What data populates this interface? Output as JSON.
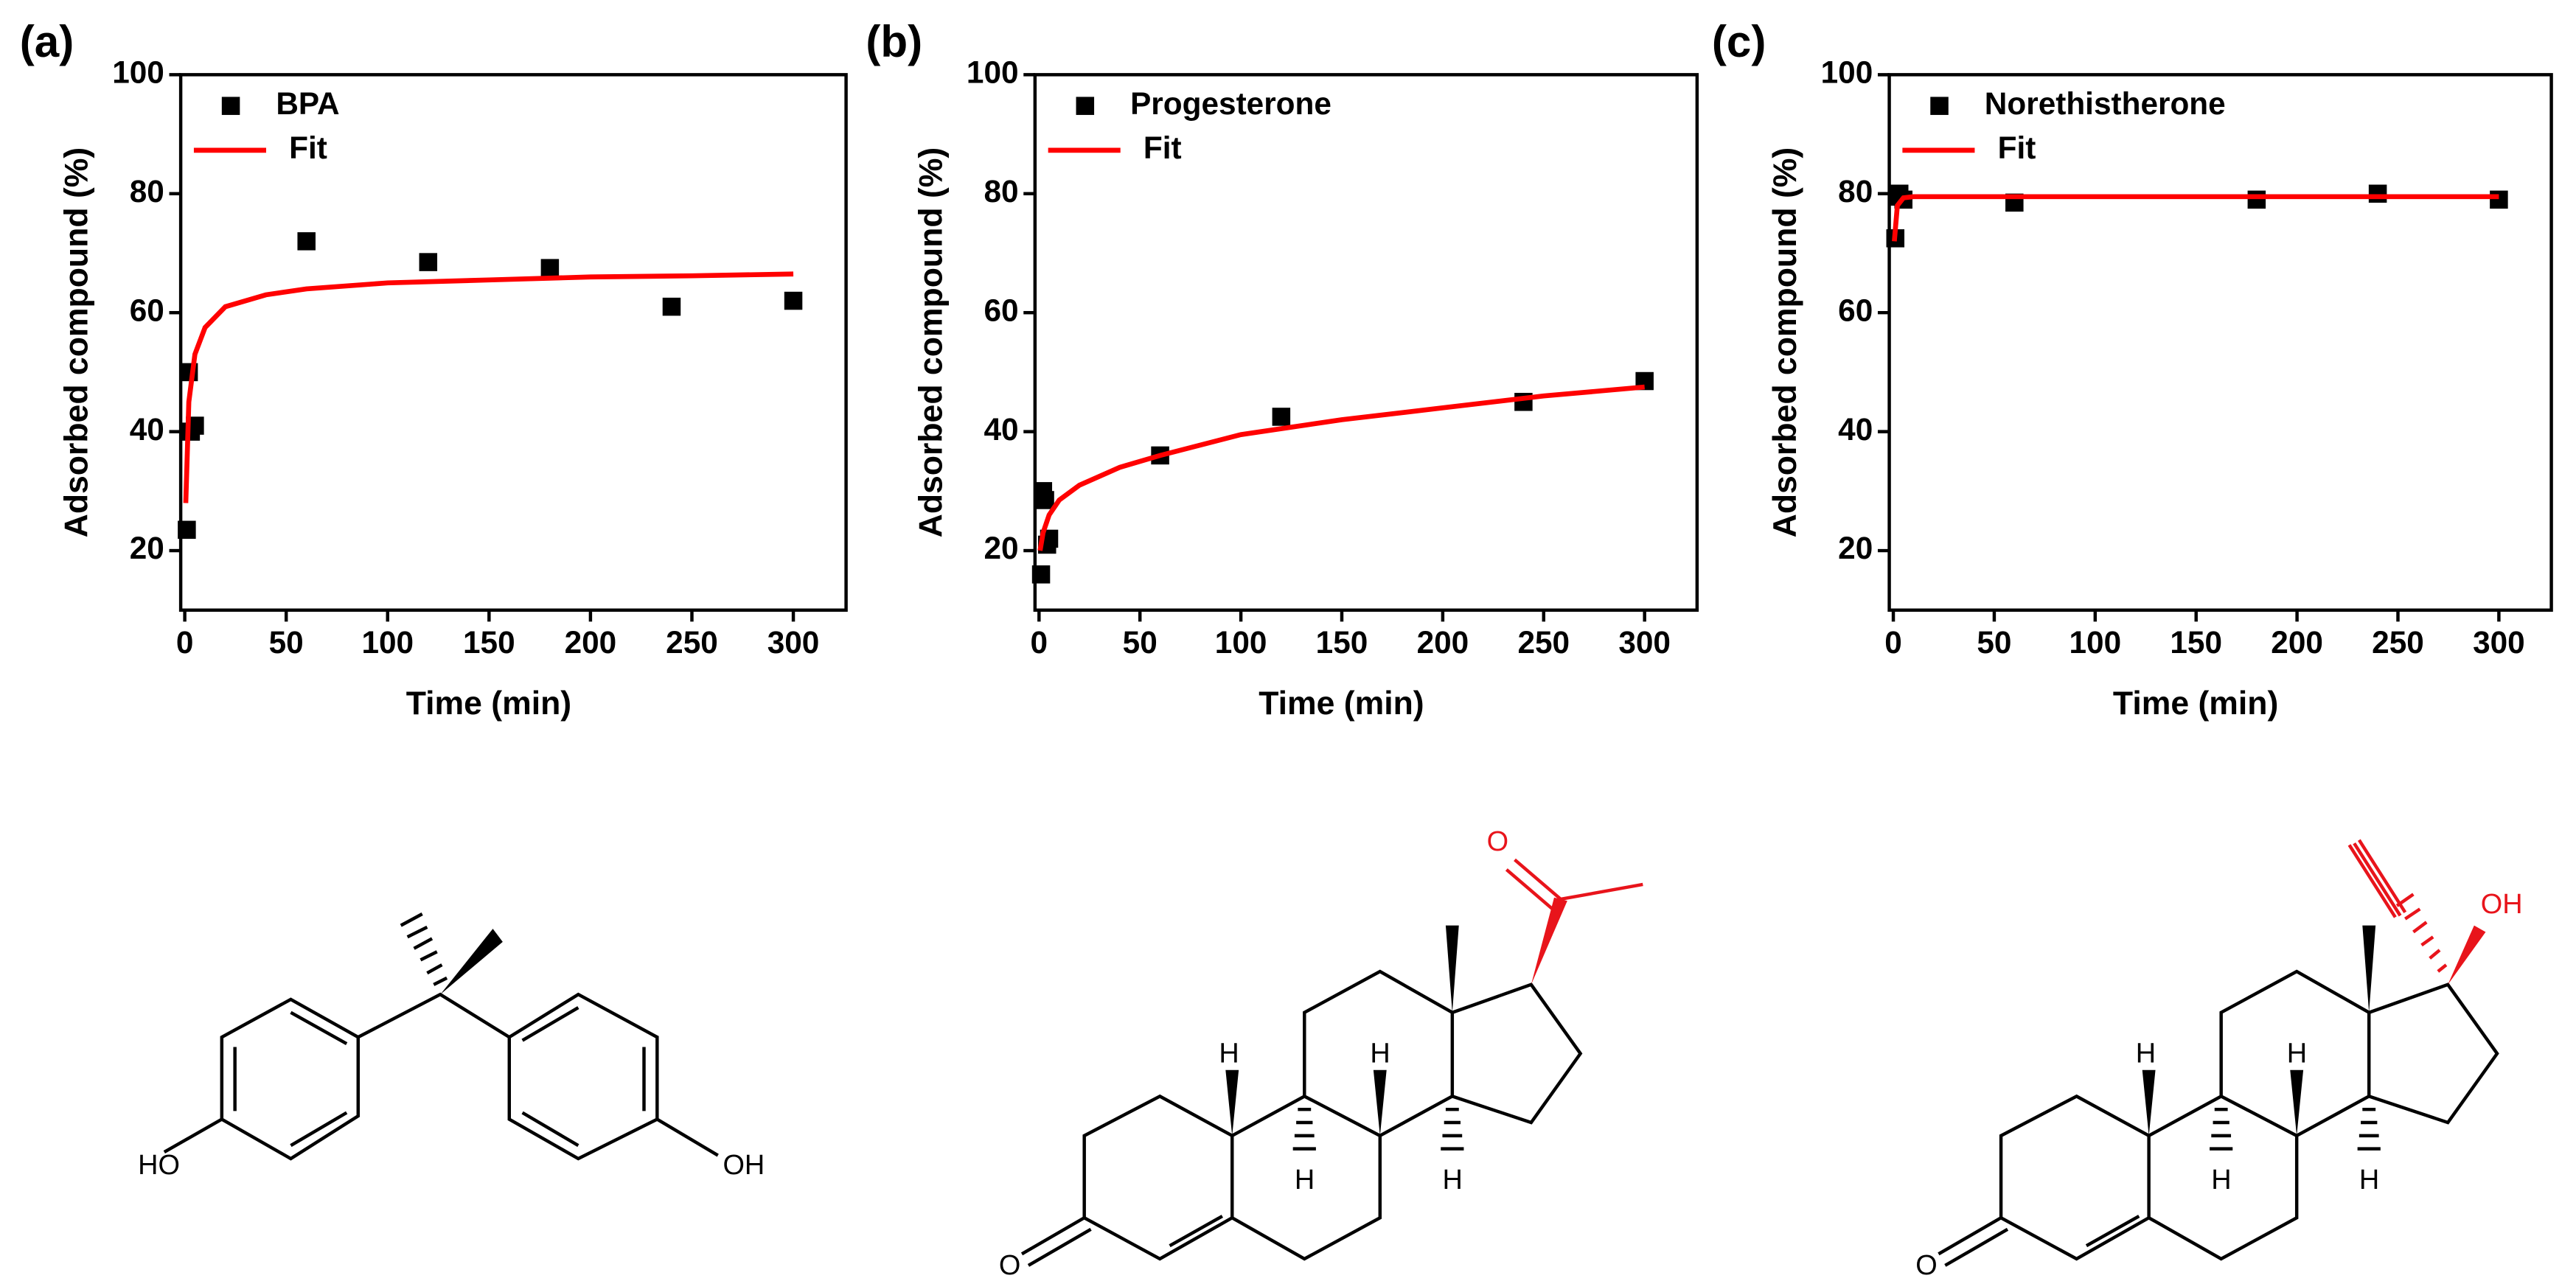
{
  "chart_data": [
    {
      "type": "scatter",
      "title": "(a)",
      "x_label": "Time (min)",
      "y_label": "Adsorbed compound (%)",
      "xlim": [
        -2,
        326
      ],
      "ylim": [
        10,
        100
      ],
      "xticks": [
        0,
        50,
        100,
        150,
        200,
        250,
        300
      ],
      "yticks": [
        20,
        40,
        60,
        80,
        100
      ],
      "legend": "upper left",
      "series": [
        {
          "name": "BPA",
          "type": "scatter",
          "color": "#000000",
          "x": [
            1,
            2,
            3,
            5,
            60,
            120,
            180,
            240,
            300
          ],
          "values": [
            23.5,
            50,
            40,
            41,
            72,
            68.5,
            67.5,
            61,
            62
          ]
        },
        {
          "name": "Fit",
          "type": "line",
          "color": "#ff0000",
          "x": [
            0.5,
            2,
            5,
            10,
            20,
            40,
            60,
            100,
            150,
            200,
            250,
            300
          ],
          "values": [
            28,
            45,
            53,
            57.5,
            61,
            63,
            64,
            65,
            65.5,
            66,
            66.2,
            66.5
          ]
        }
      ]
    },
    {
      "type": "scatter",
      "title": "(b)",
      "x_label": "Time (min)",
      "y_label": "Adsorbed compound (%)",
      "xlim": [
        -2,
        326
      ],
      "ylim": [
        10,
        100
      ],
      "xticks": [
        0,
        50,
        100,
        150,
        200,
        250,
        300
      ],
      "yticks": [
        20,
        40,
        60,
        80,
        100
      ],
      "legend": "upper left",
      "series": [
        {
          "name": "Progesterone",
          "type": "scatter",
          "color": "#000000",
          "x": [
            1,
            2,
            3,
            4,
            5,
            60,
            120,
            240,
            300
          ],
          "values": [
            16,
            30,
            28.5,
            21,
            22,
            36,
            42.5,
            45,
            48.5
          ]
        },
        {
          "name": "Fit",
          "type": "line",
          "color": "#ff0000",
          "x": [
            0.5,
            2,
            5,
            10,
            20,
            40,
            60,
            100,
            150,
            200,
            250,
            300
          ],
          "values": [
            20,
            23,
            26,
            28.5,
            31,
            34,
            36,
            39.5,
            42,
            44,
            46,
            47.5
          ]
        }
      ]
    },
    {
      "type": "scatter",
      "title": "(c)",
      "x_label": "Time (min)",
      "y_label": "Adsorbed compound (%)",
      "xlim": [
        -2,
        326
      ],
      "ylim": [
        10,
        100
      ],
      "xticks": [
        0,
        50,
        100,
        150,
        200,
        250,
        300
      ],
      "yticks": [
        20,
        40,
        60,
        80,
        100
      ],
      "legend": "upper left",
      "series": [
        {
          "name": "Norethistherone",
          "type": "scatter",
          "color": "#000000",
          "x": [
            1,
            2,
            3,
            5,
            60,
            180,
            240,
            300
          ],
          "values": [
            72.5,
            79.5,
            80,
            79,
            78.5,
            79,
            80,
            79
          ]
        },
        {
          "name": "Fit",
          "type": "line",
          "color": "#ff0000",
          "x": [
            0.5,
            2,
            5,
            10,
            300
          ],
          "values": [
            72,
            78,
            79.3,
            79.5,
            79.5
          ]
        }
      ]
    }
  ],
  "structures": [
    {
      "labels": [
        "HO",
        "OH"
      ]
    },
    {
      "labels": [
        "H",
        "H",
        "H",
        "H",
        "O",
        "O"
      ]
    },
    {
      "labels": [
        "H",
        "H",
        "H",
        "H",
        "O",
        "OH"
      ]
    }
  ]
}
